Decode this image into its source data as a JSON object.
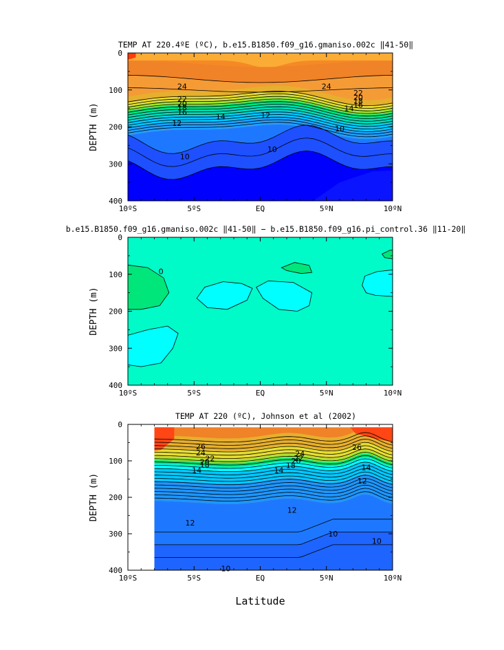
{
  "chart_data": [
    {
      "type": "heatmap",
      "title": "TEMP AT 220.4ºE (ºC), b.e15.B1850.f09_g16.gmaniso.002c ‖41-50‖",
      "xlabel": "",
      "ylabel": "DEPTH (m)",
      "xlim": [
        -10,
        10
      ],
      "ylim": [
        400,
        0
      ],
      "x_ticks": [
        "10ºS",
        "5ºS",
        "EQ",
        "5ºN",
        "10ºN"
      ],
      "y_ticks": [
        "0",
        "100",
        "200",
        "300",
        "400"
      ],
      "contour_labels": [
        "24",
        "22",
        "20",
        "18",
        "16",
        "14",
        "12",
        "10",
        "24",
        "22",
        "20",
        "18",
        "16",
        "14",
        "12",
        "10",
        "10"
      ],
      "colors": [
        "#0000ff",
        "#1e64ff",
        "#1e96ff",
        "#00c8ff",
        "#00ffff",
        "#00e67a",
        "#a0e632",
        "#e6dc32",
        "#e6af2d",
        "#f08228",
        "#ff5a1e"
      ]
    },
    {
      "type": "heatmap",
      "title": "b.e15.B1850.f09_g16.gmaniso.002c ‖41-50‖ − b.e15.B1850.f09_g16.pi_control.36 ‖11-20‖",
      "xlabel": "",
      "ylabel": "DEPTH (m)",
      "xlim": [
        -10,
        10
      ],
      "ylim": [
        400,
        0
      ],
      "x_ticks": [
        "10ºS",
        "5ºS",
        "EQ",
        "5ºN",
        "10ºN"
      ],
      "y_ticks": [
        "0",
        "100",
        "200",
        "300",
        "400"
      ],
      "contour_labels": [
        "0"
      ],
      "colors": [
        "#00fac8",
        "#00ffff",
        "#00e67a"
      ]
    },
    {
      "type": "heatmap",
      "title": "TEMP AT 220 (ºC), Johnson et al (2002)",
      "xlabel": "Latitude",
      "ylabel": "DEPTH (m)",
      "xlim": [
        -10,
        10
      ],
      "ylim": [
        400,
        0
      ],
      "x_ticks": [
        "10ºS",
        "5ºS",
        "EQ",
        "5ºN",
        "10ºN"
      ],
      "y_ticks": [
        "0",
        "100",
        "200",
        "300",
        "400"
      ],
      "contour_labels": [
        "26",
        "24",
        "22",
        "20",
        "18",
        "14",
        "14",
        "26",
        "24",
        "22",
        "20",
        "18",
        "14",
        "12",
        "12",
        "12",
        "10",
        "10",
        "10"
      ],
      "colors": [
        "#1e64ff",
        "#1e96ff",
        "#00c8ff",
        "#00ffff",
        "#00e67a",
        "#a0e632",
        "#e6dc32",
        "#e6af2d",
        "#f08228",
        "#ff5a1e"
      ]
    }
  ]
}
